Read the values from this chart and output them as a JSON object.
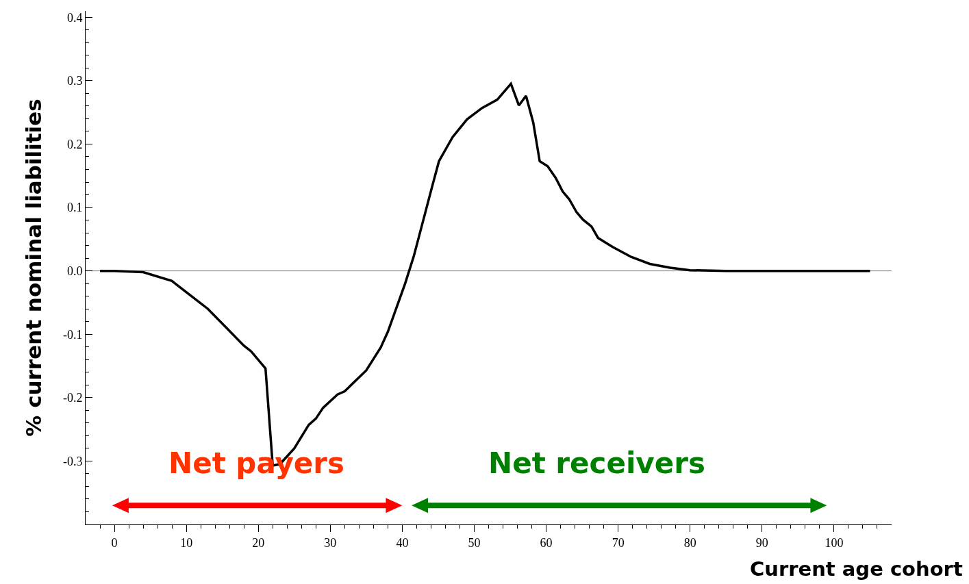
{
  "chart_data": {
    "type": "line",
    "xlabel": "Current age cohort",
    "ylabel": "% current nominal liabilities",
    "xlim": [
      -4,
      108
    ],
    "xticks": [
      0,
      10,
      20,
      30,
      40,
      50,
      60,
      70,
      80,
      90,
      100,
      {
        "value": -2,
        "label": null
      },
      {
        "value": 2,
        "label": null
      },
      {
        "value": 4,
        "label": null
      },
      {
        "value": 6,
        "label": null
      },
      {
        "value": 8,
        "label": null
      },
      {
        "value": 12,
        "label": null
      },
      {
        "value": 14,
        "label": null
      },
      {
        "value": 16,
        "label": null
      },
      {
        "value": 18,
        "label": null
      },
      {
        "value": 22,
        "label": null
      },
      {
        "value": 24,
        "label": null
      },
      {
        "value": 26,
        "label": null
      },
      {
        "value": 28,
        "label": null
      },
      {
        "value": 32,
        "label": null
      },
      {
        "value": 34,
        "label": null
      },
      {
        "value": 36,
        "label": null
      },
      {
        "value": 38,
        "label": null
      },
      {
        "value": 42,
        "label": null
      },
      {
        "value": 44,
        "label": null
      },
      {
        "value": 46,
        "label": null
      },
      {
        "value": 48,
        "label": null
      },
      {
        "value": 52,
        "label": null
      },
      {
        "value": 54,
        "label": null
      },
      {
        "value": 56,
        "label": null
      },
      {
        "value": 58,
        "label": null
      },
      {
        "value": 62,
        "label": null
      },
      {
        "value": 64,
        "label": null
      },
      {
        "value": 66,
        "label": null
      },
      {
        "value": 68,
        "label": null
      },
      {
        "value": 72,
        "label": null
      },
      {
        "value": 74,
        "label": null
      },
      {
        "value": 76,
        "label": null
      },
      {
        "value": 78,
        "label": null
      },
      {
        "value": 82,
        "label": null
      },
      {
        "value": 84,
        "label": null
      },
      {
        "value": 86,
        "label": null
      },
      {
        "value": 88,
        "label": null
      },
      {
        "value": 92,
        "label": null
      },
      {
        "value": 94,
        "label": null
      },
      {
        "value": 96,
        "label": null
      },
      {
        "value": 98,
        "label": null
      },
      {
        "value": 102,
        "label": null
      },
      {
        "value": 104,
        "label": null
      },
      {
        "value": 106,
        "label": null
      }
    ],
    "ylim": [
      -0.4,
      0.41
    ],
    "yticks": [
      -0.3,
      -0.2,
      -0.1,
      {
        "value": 0,
        "label": "0.0"
      },
      0.1,
      0.2,
      0.3,
      0.4,
      {
        "value": -0.38,
        "label": null
      },
      {
        "value": -0.36,
        "label": null
      },
      {
        "value": -0.34,
        "label": null
      },
      {
        "value": -0.32,
        "label": null
      },
      {
        "value": -0.28,
        "label": null
      },
      {
        "value": -0.26,
        "label": null
      },
      {
        "value": -0.24,
        "label": null
      },
      {
        "value": -0.22,
        "label": null
      },
      {
        "value": -0.18,
        "label": null
      },
      {
        "value": -0.16,
        "label": null
      },
      {
        "value": -0.14,
        "label": null
      },
      {
        "value": -0.12,
        "label": null
      },
      {
        "value": -0.08,
        "label": null
      },
      {
        "value": -0.06,
        "label": null
      },
      {
        "value": -0.04,
        "label": null
      },
      {
        "value": -0.02,
        "label": null
      },
      {
        "value": 0.02,
        "label": null
      },
      {
        "value": 0.04,
        "label": null
      },
      {
        "value": 0.06,
        "label": null
      },
      {
        "value": 0.08,
        "label": null
      },
      {
        "value": 0.12,
        "label": null
      },
      {
        "value": 0.14,
        "label": null
      },
      {
        "value": 0.16,
        "label": null
      },
      {
        "value": 0.18,
        "label": null
      },
      {
        "value": 0.22,
        "label": null
      },
      {
        "value": 0.24,
        "label": null
      },
      {
        "value": 0.26,
        "label": null
      },
      {
        "value": 0.28,
        "label": null
      },
      {
        "value": 0.32,
        "label": null
      },
      {
        "value": 0.34,
        "label": null
      },
      {
        "value": 0.36,
        "label": null
      },
      {
        "value": 0.38,
        "label": null
      }
    ],
    "grid": false,
    "marker": "none",
    "line_style": "solid",
    "x": [
      -2,
      0,
      4,
      8,
      13,
      18,
      19,
      21,
      22,
      23,
      25,
      27,
      28,
      29,
      31,
      32,
      35,
      37,
      38,
      40.4,
      41.6,
      44.2,
      45.1,
      47,
      49,
      51.1,
      53.2,
      55.1,
      56.2,
      57.2,
      58.2,
      59.1,
      60.2,
      61.3,
      62.3,
      63.2,
      64.2,
      65.1,
      66.3,
      67.2,
      69.2,
      71.8,
      74.4,
      77.2,
      80,
      85,
      90,
      95,
      100,
      105
    ],
    "series": [
      {
        "color": "#000000",
        "values": [
          0,
          0,
          -0.002,
          -0.016,
          -0.06,
          -0.118,
          -0.127,
          -0.154,
          -0.307,
          -0.305,
          -0.28,
          -0.243,
          -0.233,
          -0.216,
          -0.195,
          -0.19,
          -0.157,
          -0.121,
          -0.096,
          -0.02,
          0.023,
          0.135,
          0.173,
          0.211,
          0.239,
          0.257,
          0.27,
          0.295,
          0.261,
          0.276,
          0.234,
          0.173,
          0.165,
          0.147,
          0.125,
          0.113,
          0.093,
          0.081,
          0.07,
          0.052,
          0.038,
          0.022,
          0.011,
          0.005,
          0.001,
          0,
          0,
          0,
          0,
          0
        ]
      }
    ],
    "ref_lines": [
      {
        "axis": "y",
        "value": 0,
        "color": "#808080"
      }
    ],
    "annotations": [
      "Net payers",
      "Net receivers"
    ]
  }
}
